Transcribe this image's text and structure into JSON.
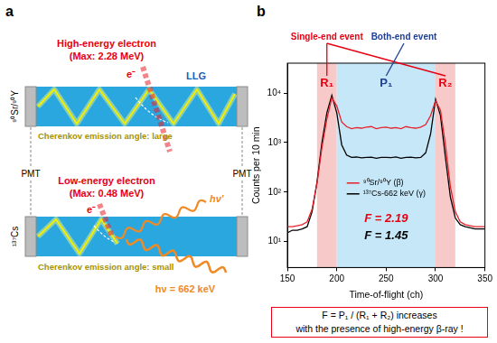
{
  "panel_a": {
    "label": "a",
    "top": {
      "source": "⁹⁰Sr/⁹⁰Y",
      "electron": [
        "High-energy electron",
        "(Max: 2.28 MeV)"
      ],
      "particle": "e⁻",
      "guide": "LLG",
      "cherenkov": "Cherenkov emission angle: large"
    },
    "pmt": [
      "PMT",
      "PMT"
    ],
    "bottom": {
      "source": "¹³⁷Cs",
      "electron": [
        "Low-energy electron",
        "(Max: 0.48 MeV)"
      ],
      "particle": "e⁻",
      "scattered_photon": "hν'",
      "gamma": "hν = 662 keV",
      "cherenkov": "Cherenkov emission angle: small"
    }
  },
  "chart_data": {
    "type": "line",
    "panel_label": "b",
    "x_label": "Time-of-flight (ch)",
    "y_label": "Counts per 10 min",
    "x": [
      150,
      155,
      160,
      165,
      170,
      175,
      180,
      185,
      190,
      195,
      200,
      205,
      210,
      215,
      220,
      225,
      230,
      235,
      240,
      245,
      250,
      255,
      260,
      265,
      270,
      275,
      280,
      285,
      290,
      295,
      300,
      305,
      310,
      315,
      320,
      325,
      330,
      335,
      340,
      345,
      350
    ],
    "series": [
      {
        "name": "⁹⁰Sr/⁹⁰Y (β)",
        "color": "#e8202a",
        "values": [
          20,
          20,
          21,
          22,
          25,
          45,
          150,
          800,
          3000,
          8000,
          5500,
          2600,
          2100,
          1900,
          2000,
          1950,
          2050,
          2100,
          1900,
          2000,
          2050,
          1950,
          2000,
          1900,
          2100,
          2000,
          1950,
          2050,
          2300,
          3500,
          7000,
          4500,
          900,
          130,
          40,
          25,
          22,
          21,
          20,
          20,
          20
        ]
      },
      {
        "name": "¹³⁷Cs-662 keV (γ)",
        "color": "#000000",
        "values": [
          15,
          17,
          17,
          18,
          20,
          40,
          160,
          1000,
          4000,
          9000,
          4000,
          900,
          560,
          500,
          510,
          490,
          500,
          505,
          480,
          500,
          500,
          495,
          510,
          480,
          500,
          505,
          490,
          500,
          620,
          1500,
          7500,
          3500,
          500,
          80,
          30,
          22,
          20,
          19,
          18,
          18,
          18
        ]
      }
    ],
    "xlim": [
      150,
      350
    ],
    "xticks": [
      150,
      200,
      250,
      300,
      350
    ],
    "ylim": [
      3,
      40000
    ],
    "yticks": [
      {
        "value": 10,
        "label": "10¹"
      },
      {
        "value": 100,
        "label": "10²"
      },
      {
        "value": 1000,
        "label": "10³"
      },
      {
        "value": 10000,
        "label": "10⁴"
      }
    ],
    "log": "y",
    "grid": false,
    "legend": "center",
    "regions": [
      {
        "label": "R₁",
        "from": 180,
        "to": 200,
        "color": "#f7c9c9",
        "label_color": "#e60012"
      },
      {
        "label": "P₁",
        "from": 200,
        "to": 300,
        "color": "#c6e7f7",
        "label_color": "#1d3f95"
      },
      {
        "label": "R₂",
        "from": 300,
        "to": 320,
        "color": "#f7c9c9",
        "label_color": "#e60012"
      }
    ],
    "annotations": [
      {
        "text": "Single-end event",
        "color": "#e60012",
        "points_to": [
          "R₁",
          "R₂"
        ]
      },
      {
        "text": "Both-end event",
        "color": "#1d3f95",
        "points_to": [
          "P₁"
        ]
      },
      {
        "text": "F = 2.19",
        "color": "#e60012"
      },
      {
        "text": "F = 1.45",
        "color": "#000000"
      }
    ],
    "note_box": [
      "F = P₁ / (R₁ + R₂) increases",
      "with the presence of high-energy β-ray !"
    ]
  }
}
